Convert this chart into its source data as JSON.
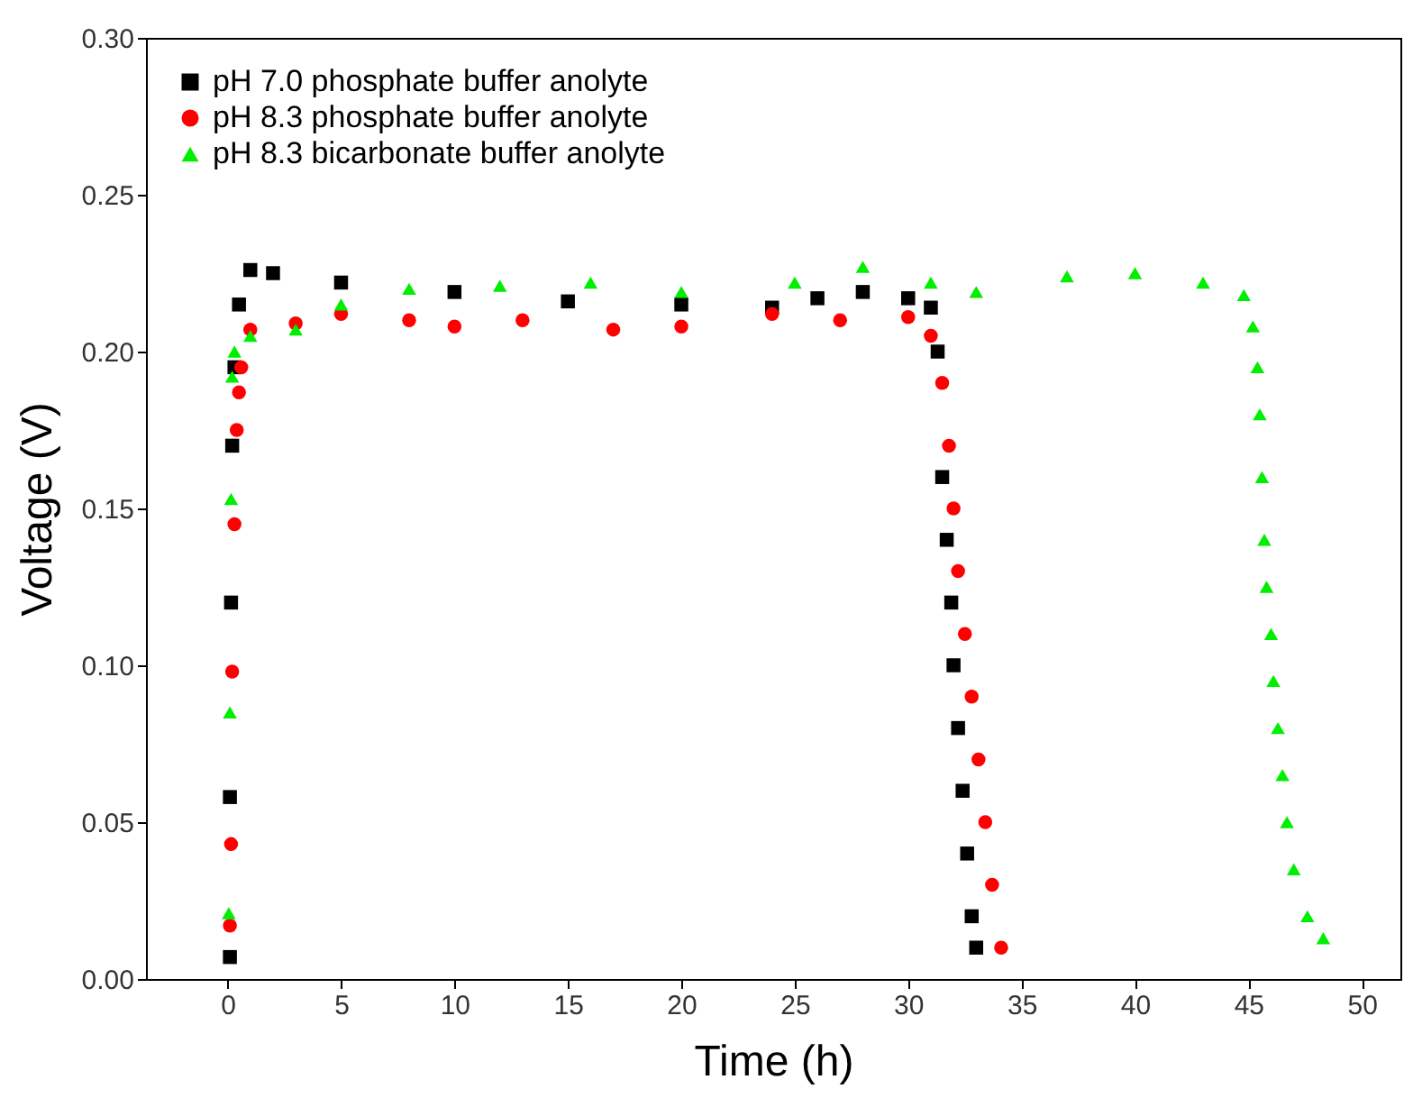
{
  "chart_data": {
    "type": "scatter",
    "xlabel": "Time (h)",
    "ylabel": "Voltage (V)",
    "xlim": [
      -3.6,
      51.7
    ],
    "ylim": [
      0,
      0.3
    ],
    "xticks": [
      0,
      5,
      10,
      15,
      20,
      25,
      30,
      35,
      40,
      45,
      50
    ],
    "yticks": [
      {
        "value": 0,
        "label": "0.00"
      },
      {
        "value": 0.05,
        "label": "0.05"
      },
      {
        "value": 0.1,
        "label": "0.10"
      },
      {
        "value": 0.15,
        "label": "0.15"
      },
      {
        "value": 0.2,
        "label": "0.20"
      },
      {
        "value": 0.25,
        "label": "0.25"
      },
      {
        "value": 0.3,
        "label": "0.30"
      }
    ],
    "grid": false,
    "legend": "top left",
    "series": [
      {
        "name": "pH 7.0 phosphate buffer anolyte",
        "color": "#000000",
        "marker": "square",
        "x": [
          0.1,
          0.1,
          0.15,
          0.2,
          0.3,
          0.5,
          1,
          2,
          5,
          10,
          15,
          20,
          24,
          26,
          28,
          30,
          31,
          31.3,
          31.5,
          31.7,
          31.9,
          32.0,
          32.2,
          32.4,
          32.6,
          32.8,
          33.0
        ],
        "values": [
          0.007,
          0.058,
          0.12,
          0.17,
          0.195,
          0.215,
          0.226,
          0.225,
          0.222,
          0.219,
          0.216,
          0.215,
          0.214,
          0.217,
          0.219,
          0.217,
          0.214,
          0.2,
          0.16,
          0.14,
          0.12,
          0.1,
          0.08,
          0.06,
          0.04,
          0.02,
          0.01
        ]
      },
      {
        "name": "pH 8.3 phosphate buffer anolyte",
        "color": "#ff0000",
        "marker": "circle",
        "x": [
          0.1,
          0.15,
          0.2,
          0.3,
          0.4,
          0.5,
          0.6,
          1,
          3,
          5,
          8,
          10,
          13,
          17,
          20,
          24,
          27,
          30,
          31,
          31.5,
          31.8,
          32,
          32.2,
          32.5,
          32.8,
          33.1,
          33.4,
          33.7,
          34.1
        ],
        "values": [
          0.017,
          0.043,
          0.098,
          0.145,
          0.175,
          0.187,
          0.195,
          0.207,
          0.209,
          0.212,
          0.21,
          0.208,
          0.21,
          0.207,
          0.208,
          0.212,
          0.21,
          0.211,
          0.205,
          0.19,
          0.17,
          0.15,
          0.13,
          0.11,
          0.09,
          0.07,
          0.05,
          0.03,
          0.01
        ]
      },
      {
        "name": "pH 8.3 bicarbonate buffer anolyte",
        "color": "#00ee00",
        "marker": "triangle",
        "x": [
          0.05,
          0.1,
          0.15,
          0.2,
          0.3,
          1,
          3,
          5,
          8,
          12,
          16,
          20,
          25,
          28,
          31,
          33,
          37,
          40,
          43,
          44.8,
          45.2,
          45.4,
          45.5,
          45.6,
          45.7,
          45.8,
          46,
          46.1,
          46.3,
          46.5,
          46.7,
          47.0,
          47.6,
          48.3
        ],
        "values": [
          0.021,
          0.085,
          0.153,
          0.192,
          0.2,
          0.205,
          0.207,
          0.215,
          0.22,
          0.221,
          0.222,
          0.219,
          0.222,
          0.227,
          0.222,
          0.219,
          0.224,
          0.225,
          0.222,
          0.218,
          0.208,
          0.195,
          0.18,
          0.16,
          0.14,
          0.125,
          0.11,
          0.095,
          0.08,
          0.065,
          0.05,
          0.035,
          0.02,
          0.013
        ]
      }
    ]
  }
}
